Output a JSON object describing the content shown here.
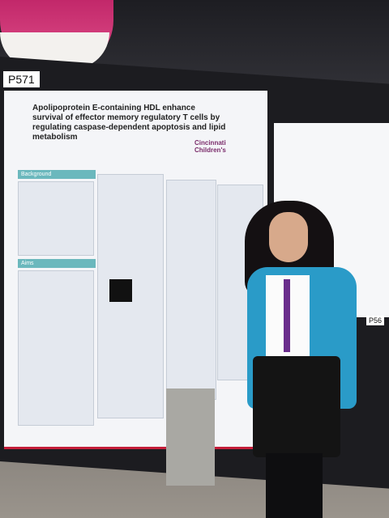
{
  "booth": {
    "left_number": "P571",
    "right_number": "P56"
  },
  "poster": {
    "title": "Apolipoprotein E-containing HDL enhance survival of effector memory regulatory T cells by regulating caspase-dependent apoptosis and lipid metabolism",
    "logo": "Cincinnati Children's",
    "sections": [
      "Background",
      "Aims"
    ]
  }
}
